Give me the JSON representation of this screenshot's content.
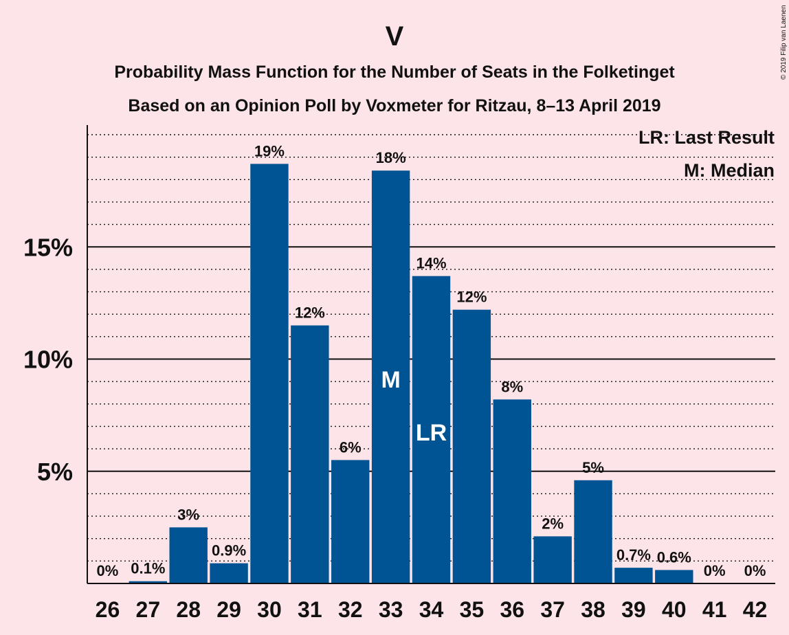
{
  "chart_data": {
    "type": "bar",
    "title": "V",
    "subtitle": "Probability Mass Function for the Number of Seats in the Folketinget",
    "subtitle2": "Based on an Opinion Poll by Voxmeter for Ritzau, 8–13 April 2019",
    "credit": "© 2019 Filip van Laenen",
    "legend": [
      "LR: Last Result",
      "M: Median"
    ],
    "legend_position": "top-right",
    "categories": [
      "26",
      "27",
      "28",
      "29",
      "30",
      "31",
      "32",
      "33",
      "34",
      "35",
      "36",
      "37",
      "38",
      "39",
      "40",
      "41",
      "42"
    ],
    "values": [
      0.0,
      0.1,
      2.5,
      0.9,
      18.7,
      11.5,
      5.5,
      18.4,
      13.7,
      12.2,
      8.2,
      2.1,
      4.6,
      0.7,
      0.6,
      0.0,
      0.0
    ],
    "data_labels": [
      "0%",
      "0.1%",
      "3%",
      "0.9%",
      "19%",
      "12%",
      "6%",
      "18%",
      "14%",
      "12%",
      "8%",
      "2%",
      "5%",
      "0.7%",
      "0.6%",
      "0%",
      "0%"
    ],
    "bar_markers": [
      {
        "category": "33",
        "text": "M"
      },
      {
        "category": "34",
        "text": "LR"
      }
    ],
    "y_ticks": [
      {
        "value": 5,
        "label": "5%"
      },
      {
        "value": 10,
        "label": "10%"
      },
      {
        "value": 15,
        "label": "15%"
      }
    ],
    "ylim": [
      0,
      20.5
    ],
    "minor_grid_step": 1,
    "colors": {
      "bar": "#005493",
      "background": "#fde4e8",
      "grid": "#111111"
    }
  }
}
